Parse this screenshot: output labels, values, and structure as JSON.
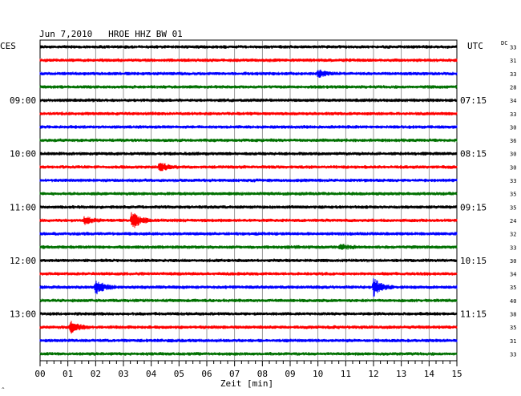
{
  "chart_data": {
    "type": "line",
    "title": "Jun 7,2010   HROE HHZ BW 01",
    "left_timezone": "CES",
    "right_timezone": "UTC",
    "dc_header": "DC",
    "xlabel": "Zeit [min]",
    "xlim": [
      0,
      15
    ],
    "x_ticks": [
      "00",
      "01",
      "02",
      "03",
      "04",
      "05",
      "06",
      "07",
      "08",
      "09",
      "10",
      "11",
      "12",
      "13",
      "14",
      "15"
    ],
    "grid": true,
    "trace_colors": [
      "#000000",
      "#ff0000",
      "#0000ff",
      "#007000"
    ],
    "left_hour_labels": [
      {
        "label": "09:00",
        "trace": 4
      },
      {
        "label": "10:00",
        "trace": 8
      },
      {
        "label": "11:00",
        "trace": 12
      },
      {
        "label": "12:00",
        "trace": 16
      },
      {
        "label": "13:00",
        "trace": 20
      }
    ],
    "right_hour_labels": [
      {
        "label": "07:15",
        "trace": 4
      },
      {
        "label": "08:15",
        "trace": 8
      },
      {
        "label": "09:15",
        "trace": 12
      },
      {
        "label": "10:15",
        "trace": 16
      },
      {
        "label": "11:15",
        "trace": 20
      }
    ],
    "dc_values": [
      "33",
      "31",
      "33",
      "28",
      "34",
      "33",
      "30",
      "36",
      "30",
      "30",
      "33",
      "35",
      "35",
      "24",
      "32",
      "33",
      "30",
      "34",
      "35",
      "40",
      "38",
      "35",
      "31",
      "33"
    ],
    "events": [
      {
        "trace": 2,
        "minute": 10.0,
        "strength": 0.35
      },
      {
        "trace": 9,
        "minute": 4.3,
        "strength": 0.5
      },
      {
        "trace": 13,
        "minute": 1.6,
        "strength": 0.4
      },
      {
        "trace": 13,
        "minute": 3.3,
        "strength": 1.0
      },
      {
        "trace": 18,
        "minute": 2.0,
        "strength": 0.7
      },
      {
        "trace": 18,
        "minute": 12.0,
        "strength": 0.95
      },
      {
        "trace": 21,
        "minute": 1.1,
        "strength": 0.6
      },
      {
        "trace": 15,
        "minute": 10.8,
        "strength": 0.3
      }
    ]
  }
}
